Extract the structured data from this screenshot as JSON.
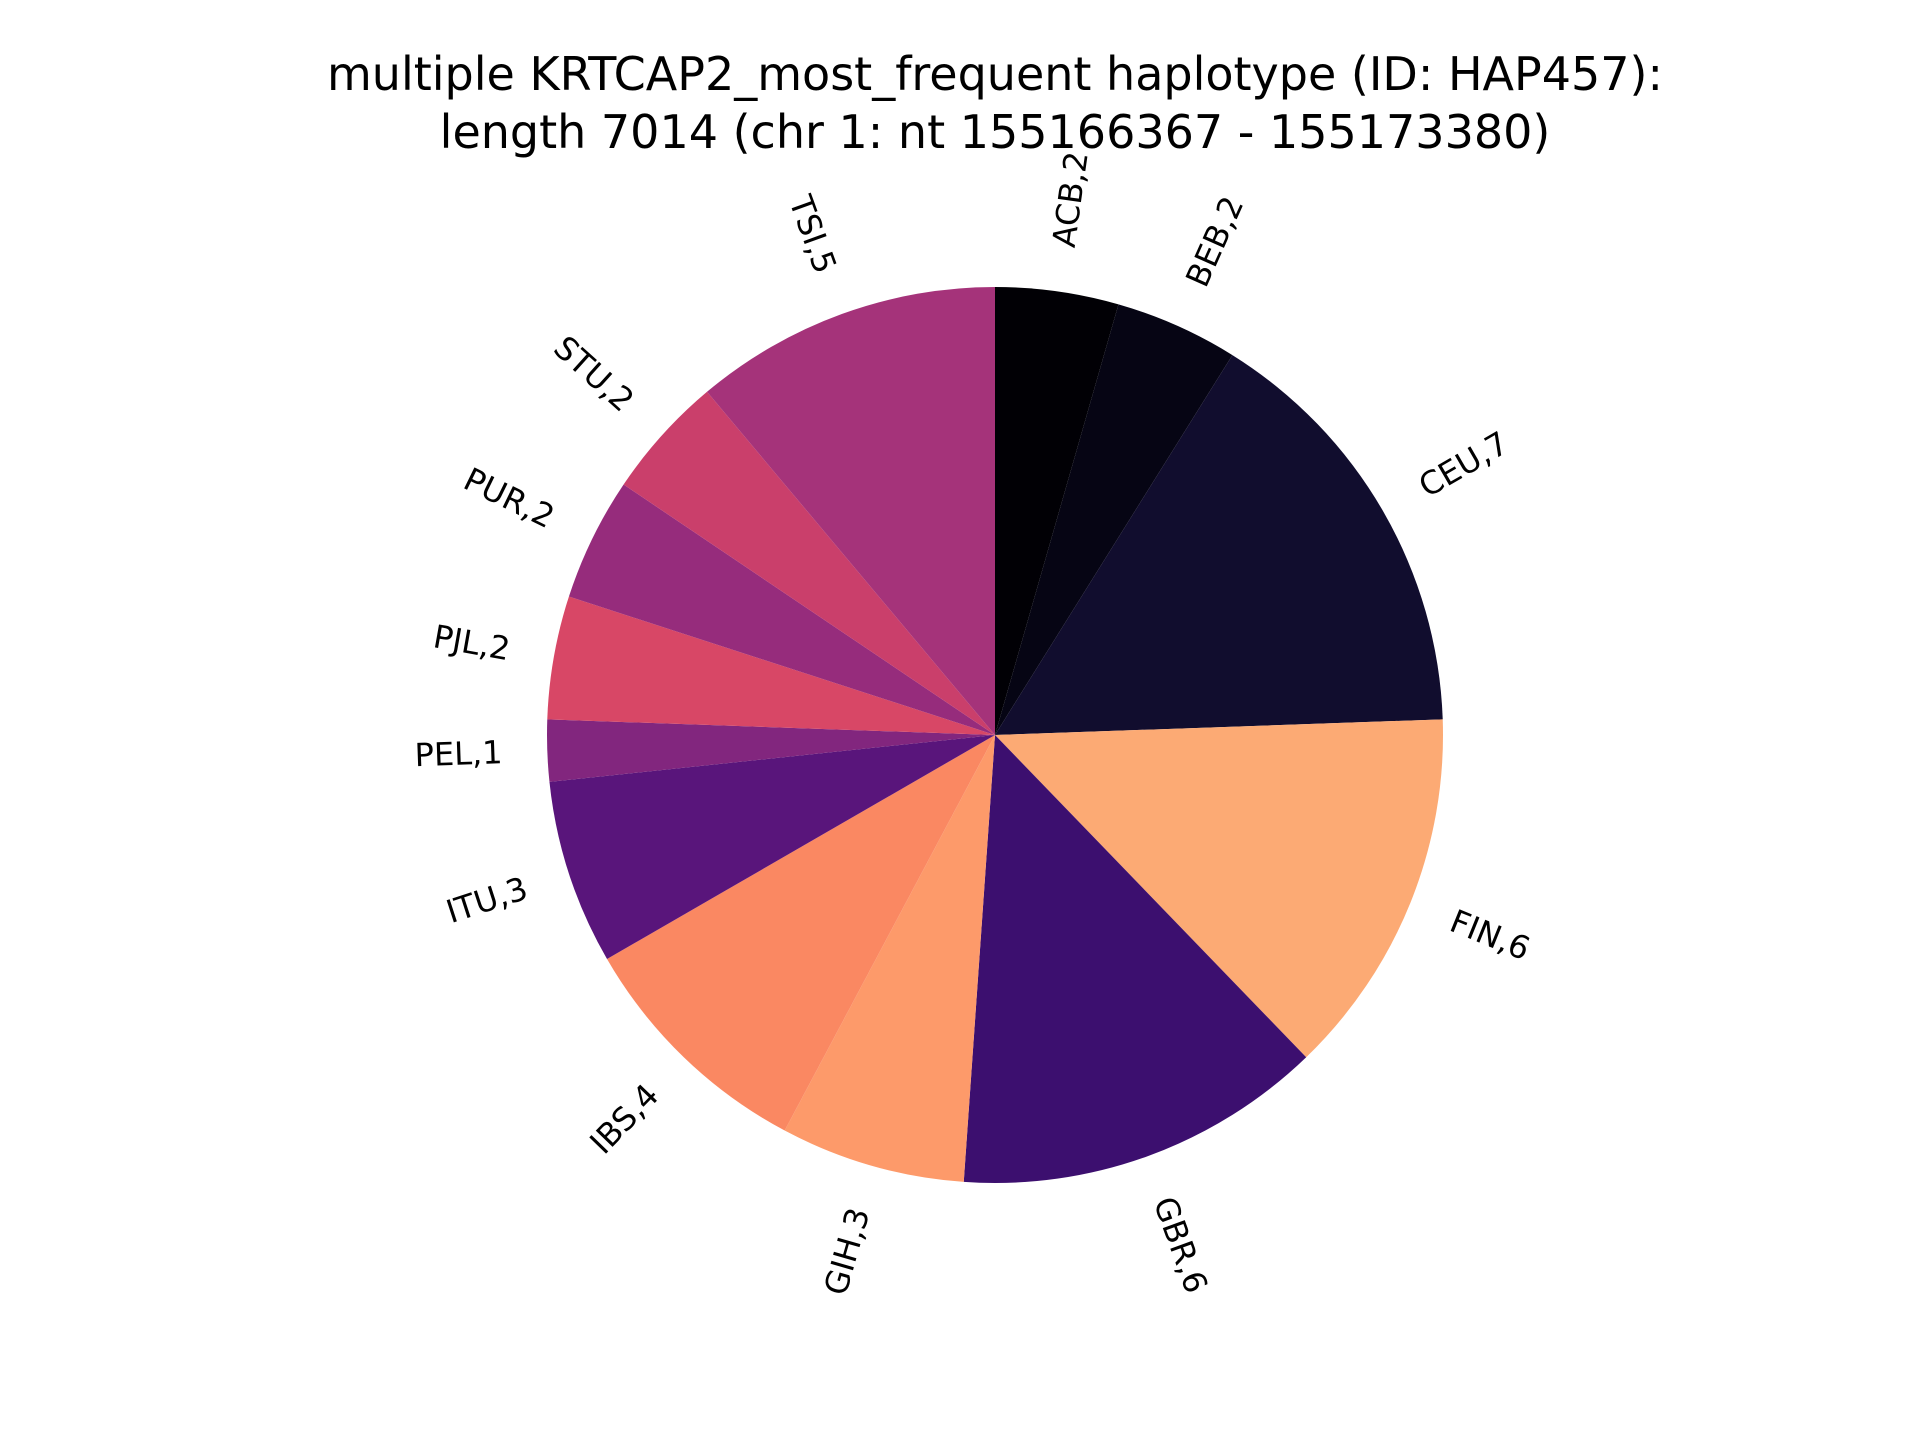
{
  "chart_data": {
    "type": "pie",
    "title": "multiple KRTCAP2_most_frequent haplotype (ID: HAP457):",
    "subtitle": "length 7014 (chr 1: nt 155166367 - 155173380)",
    "start_angle_deg": 90,
    "direction": "clockwise",
    "slices": [
      {
        "label": "ACB,2",
        "population": "ACB",
        "count": 2,
        "color": "#010005"
      },
      {
        "label": "BEB,2",
        "population": "BEB",
        "count": 2,
        "color": "#060514"
      },
      {
        "label": "CEU,7",
        "population": "CEU",
        "count": 7,
        "color": "#110d2e"
      },
      {
        "label": "FIN,6",
        "population": "FIN",
        "count": 6,
        "color": "#fcaa74"
      },
      {
        "label": "GBR,6",
        "population": "GBR",
        "count": 6,
        "color": "#3c0f6f"
      },
      {
        "label": "GIH,3",
        "population": "GIH",
        "count": 3,
        "color": "#fd9a6a"
      },
      {
        "label": "IBS,4",
        "population": "IBS",
        "count": 4,
        "color": "#fa8862"
      },
      {
        "label": "ITU,3",
        "population": "ITU",
        "count": 3,
        "color": "#59157b"
      },
      {
        "label": "PEL,1",
        "population": "PEL",
        "count": 1,
        "color": "#82267e"
      },
      {
        "label": "PJL,2",
        "population": "PJL",
        "count": 2,
        "color": "#d84766"
      },
      {
        "label": "PUR,2",
        "population": "PUR",
        "count": 2,
        "color": "#962c7c"
      },
      {
        "label": "STU,2",
        "population": "STU",
        "count": 2,
        "color": "#ca3f6b"
      },
      {
        "label": "TSI,5",
        "population": "TSI",
        "count": 5,
        "color": "#a5337a"
      }
    ]
  }
}
